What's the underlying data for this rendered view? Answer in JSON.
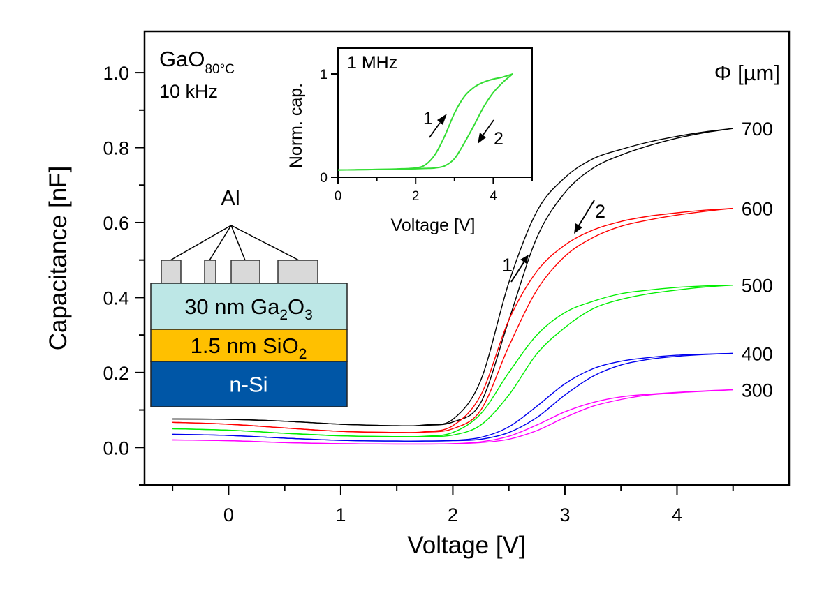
{
  "chart_data": [
    {
      "id": "main",
      "type": "line",
      "title": "",
      "xlabel": "Voltage [V]",
      "ylabel": "Capacitance [nF]",
      "xlim": [
        -0.75,
        5.0
      ],
      "ylim": [
        -0.1,
        1.11
      ],
      "xticks": [
        0,
        1,
        2,
        3,
        4
      ],
      "xtick_labels": [
        "0",
        "1",
        "2",
        "3",
        "4"
      ],
      "x_minor_ticks": [
        -0.5,
        0.5,
        1.5,
        2.5,
        3.5,
        4.5
      ],
      "yticks": [
        0.0,
        0.2,
        0.4,
        0.6,
        0.8,
        1.0
      ],
      "ytick_labels": [
        "0.0",
        "0.2",
        "0.4",
        "0.6",
        "0.8",
        "1.0"
      ],
      "y_minor_ticks": [
        -0.1,
        0.1,
        0.3,
        0.5,
        0.7,
        0.9
      ],
      "grid": false,
      "x": [
        -0.5,
        0.0,
        0.5,
        1.0,
        1.5,
        1.75,
        2.0,
        2.25,
        2.5,
        2.75,
        3.0,
        3.25,
        3.5,
        3.75,
        4.0,
        4.25,
        4.5
      ],
      "legend_title": "Φ [µm]",
      "legend_placement": "right, labels at curve ends",
      "series": [
        {
          "name": "700",
          "color": "#000000",
          "sweep_1": [
            0.076,
            0.075,
            0.07,
            0.062,
            0.058,
            0.06,
            0.075,
            0.18,
            0.44,
            0.63,
            0.72,
            0.77,
            0.795,
            0.815,
            0.83,
            0.842,
            0.851
          ],
          "sweep_2": [
            0.076,
            0.075,
            0.07,
            0.062,
            0.058,
            0.059,
            0.068,
            0.12,
            0.34,
            0.56,
            0.68,
            0.745,
            0.78,
            0.805,
            0.825,
            0.84,
            0.851
          ]
        },
        {
          "name": "600",
          "color": "#ff0000",
          "sweep_1": [
            0.067,
            0.062,
            0.052,
            0.043,
            0.04,
            0.042,
            0.058,
            0.14,
            0.34,
            0.47,
            0.54,
            0.58,
            0.603,
            0.617,
            0.626,
            0.633,
            0.638
          ],
          "sweep_2": [
            0.067,
            0.062,
            0.052,
            0.043,
            0.04,
            0.041,
            0.05,
            0.1,
            0.27,
            0.42,
            0.51,
            0.56,
            0.59,
            0.607,
            0.62,
            0.63,
            0.638
          ]
        },
        {
          "name": "500",
          "color": "#00ee00",
          "sweep_1": [
            0.05,
            0.046,
            0.038,
            0.031,
            0.029,
            0.03,
            0.04,
            0.09,
            0.2,
            0.3,
            0.36,
            0.39,
            0.41,
            0.42,
            0.427,
            0.431,
            0.433
          ],
          "sweep_2": [
            0.05,
            0.046,
            0.038,
            0.031,
            0.029,
            0.029,
            0.033,
            0.06,
            0.14,
            0.25,
            0.32,
            0.37,
            0.395,
            0.41,
            0.42,
            0.428,
            0.433
          ]
        },
        {
          "name": "400",
          "color": "#0000ee",
          "sweep_1": [
            0.035,
            0.032,
            0.025,
            0.019,
            0.017,
            0.017,
            0.019,
            0.027,
            0.055,
            0.11,
            0.17,
            0.21,
            0.23,
            0.24,
            0.246,
            0.249,
            0.251
          ],
          "sweep_2": [
            0.035,
            0.032,
            0.025,
            0.019,
            0.017,
            0.017,
            0.018,
            0.022,
            0.04,
            0.08,
            0.14,
            0.19,
            0.22,
            0.235,
            0.243,
            0.248,
            0.251
          ]
        },
        {
          "name": "300",
          "color": "#ff00ff",
          "sweep_1": [
            0.02,
            0.018,
            0.013,
            0.01,
            0.009,
            0.009,
            0.01,
            0.015,
            0.03,
            0.06,
            0.095,
            0.12,
            0.135,
            0.142,
            0.147,
            0.151,
            0.154
          ],
          "sweep_2": [
            0.02,
            0.018,
            0.013,
            0.01,
            0.009,
            0.009,
            0.01,
            0.013,
            0.022,
            0.045,
            0.08,
            0.11,
            0.128,
            0.14,
            0.146,
            0.15,
            0.154
          ]
        }
      ],
      "annotations": {
        "sample": "GaO",
        "sample_subscript": "80°C",
        "frequency": "10 kHz",
        "sweep_1_label": "1",
        "sweep_2_label": "2",
        "contact_label": "Al",
        "layers": [
          {
            "text": "30 nm Ga",
            "sub1": "2",
            "mid": "O",
            "sub2": "3",
            "color": "#bde7e6",
            "text_color": "#000000"
          },
          {
            "text": "1.5 nm SiO",
            "sub1": "2",
            "mid": "",
            "sub2": "",
            "color": "#ffc000",
            "text_color": "#000000"
          },
          {
            "text": "n-Si",
            "sub1": "",
            "mid": "",
            "sub2": "",
            "color": "#0056a6",
            "text_color": "#ffffff"
          }
        ],
        "contact_color": "#d9d9d9"
      }
    },
    {
      "id": "inset",
      "type": "line",
      "title": "1 MHz",
      "xlabel": "Voltage [V]",
      "ylabel": "Norm. cap.",
      "xlim": [
        0,
        5.0
      ],
      "ylim": [
        0,
        1.25
      ],
      "xticks": [
        0,
        2,
        4
      ],
      "xtick_labels": [
        "0",
        "2",
        "4"
      ],
      "x_minor_ticks": [
        1,
        3,
        5
      ],
      "yticks": [
        0,
        1
      ],
      "ytick_labels": [
        "0",
        "1"
      ],
      "grid": false,
      "x": [
        0.0,
        0.5,
        1.0,
        1.5,
        2.0,
        2.25,
        2.5,
        2.75,
        3.0,
        3.25,
        3.5,
        3.75,
        4.0,
        4.25,
        4.5
      ],
      "series": [
        {
          "name": "1 MHz",
          "color": "#33dd33",
          "sweep_1": [
            0.07,
            0.072,
            0.075,
            0.08,
            0.09,
            0.12,
            0.22,
            0.4,
            0.62,
            0.78,
            0.87,
            0.92,
            0.95,
            0.97,
            1.0
          ],
          "sweep_2": [
            0.07,
            0.072,
            0.075,
            0.078,
            0.082,
            0.085,
            0.09,
            0.11,
            0.18,
            0.33,
            0.5,
            0.68,
            0.82,
            0.92,
            1.0
          ]
        }
      ],
      "annotations": {
        "sweep_1_label": "1",
        "sweep_2_label": "2"
      }
    }
  ]
}
